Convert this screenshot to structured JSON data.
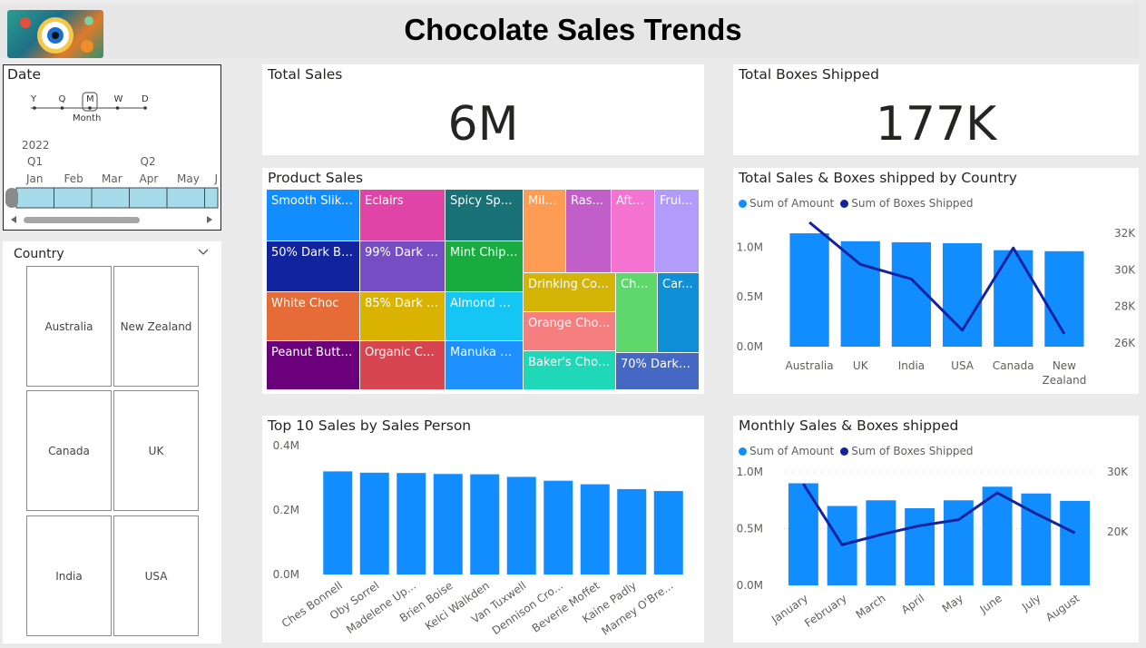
{
  "header": {
    "title": "Chocolate Sales Trends"
  },
  "date_slicer": {
    "title": "Date",
    "levels": [
      "Y",
      "Q",
      "M",
      "W",
      "D"
    ],
    "selected_level": "M",
    "selected_level_label": "Month",
    "year": "2022",
    "quarters": [
      {
        "label": "Q1",
        "month_index": 0
      },
      {
        "label": "Q2",
        "month_index": 3
      }
    ],
    "months": [
      "Jan",
      "Feb",
      "Mar",
      "Apr",
      "May",
      "J"
    ]
  },
  "country_slicer": {
    "title": "Country",
    "countries": [
      "Australia",
      "New Zealand",
      "Canada",
      "UK",
      "India",
      "USA"
    ]
  },
  "kpis": {
    "total_sales": {
      "title": "Total Sales",
      "value": "6M"
    },
    "total_boxes": {
      "title": "Total Boxes Shipped",
      "value": "177K"
    }
  },
  "legend": {
    "amount": {
      "label": "Sum of Amount",
      "color": "#118dff"
    },
    "boxes": {
      "label": "Sum of Boxes Shipped",
      "color": "#12239e"
    }
  },
  "chart_data": [
    {
      "id": "product_sales",
      "type": "treemap",
      "title": "Product Sales",
      "items": [
        {
          "label": "Smooth Sliky ...",
          "color": "#118dff"
        },
        {
          "label": "Eclairs",
          "color": "#e044a7"
        },
        {
          "label": "Spicy Spec...",
          "color": "#197278"
        },
        {
          "label": "Milk...",
          "color": "#fe9c54"
        },
        {
          "label": "Ras...",
          "color": "#c15ec9"
        },
        {
          "label": "Afte...",
          "color": "#f472d0"
        },
        {
          "label": "Frui...",
          "color": "#b19cfb"
        },
        {
          "label": "50% Dark Bites",
          "color": "#12239e"
        },
        {
          "label": "99% Dark &...",
          "color": "#744ec2"
        },
        {
          "label": "Mint Chip ...",
          "color": "#1aab40"
        },
        {
          "label": "Drinking Coco",
          "color": "#d4b406"
        },
        {
          "label": "Cho...",
          "color": "#5fd86b"
        },
        {
          "label": "Car...",
          "color": "#0f90d6"
        },
        {
          "label": "White Choc",
          "color": "#e66c37"
        },
        {
          "label": "85% Dark B...",
          "color": "#d9b300"
        },
        {
          "label": "Almond C...",
          "color": "#15c6f4"
        },
        {
          "label": "Orange Choco",
          "color": "#f57e7e"
        },
        {
          "label": "Peanut Butter...",
          "color": "#6b007b"
        },
        {
          "label": "Organic Ch...",
          "color": "#d64550"
        },
        {
          "label": "Manuka H...",
          "color": "#1e90ff"
        },
        {
          "label": "Baker's Choc...",
          "color": "#1ed8b8"
        },
        {
          "label": "70% Dark B...",
          "color": "#4668c5"
        }
      ]
    },
    {
      "id": "country_combo",
      "type": "bar+line",
      "title": "Total Sales & Boxes shipped by Country",
      "categories": [
        "Australia",
        "UK",
        "India",
        "USA",
        "Canada",
        "New Zealand"
      ],
      "series": [
        {
          "name": "Sum of Amount",
          "axis": "left",
          "values": [
            1140000,
            1060000,
            1050000,
            1040000,
            970000,
            960000
          ]
        },
        {
          "name": "Sum of Boxes Shipped",
          "axis": "right",
          "values": [
            32600,
            30300,
            29500,
            26700,
            31200,
            26500
          ]
        }
      ],
      "ylim_left": [
        0,
        1250000
      ],
      "yticks_left": [
        {
          "v": 0,
          "label": "0.0M"
        },
        {
          "v": 500000,
          "label": "0.5M"
        },
        {
          "v": 1000000,
          "label": "1.0M"
        }
      ],
      "ylim_right": [
        25800,
        32600
      ],
      "yticks_right": [
        {
          "v": 26000,
          "label": "26K"
        },
        {
          "v": 28000,
          "label": "28K"
        },
        {
          "v": 30000,
          "label": "30K"
        },
        {
          "v": 32000,
          "label": "32K"
        }
      ]
    },
    {
      "id": "sales_person",
      "type": "bar",
      "title": "Top 10 Sales by Sales Person",
      "categories": [
        "Ches Bonnell",
        "Oby Sorrel",
        "Madelene Up...",
        "Brien Boise",
        "Kelci Walkden",
        "Van Tuxwell",
        "Dennison Cro...",
        "Beverie Moffet",
        "Kaine Padly",
        "Marney O'Bre..."
      ],
      "values": [
        320000,
        316000,
        315000,
        312000,
        311000,
        303000,
        291000,
        280000,
        265000,
        259000
      ],
      "ylim": [
        0,
        400000
      ],
      "yticks": [
        {
          "v": 0,
          "label": "0.0M"
        },
        {
          "v": 200000,
          "label": "0.2M"
        },
        {
          "v": 400000,
          "label": "0.4M"
        }
      ]
    },
    {
      "id": "monthly_combo",
      "type": "bar+line",
      "title": "Monthly Sales & Boxes shipped",
      "categories": [
        "January",
        "February",
        "March",
        "April",
        "May",
        "June",
        "July",
        "August"
      ],
      "series": [
        {
          "name": "Sum of Amount",
          "axis": "left",
          "values": [
            900000,
            700000,
            750000,
            680000,
            750000,
            870000,
            810000,
            745000
          ]
        },
        {
          "name": "Sum of Boxes Shipped",
          "axis": "right",
          "values": [
            28000,
            17800,
            19500,
            21000,
            22000,
            26500,
            23000,
            19800
          ]
        }
      ],
      "ylim_left": [
        0,
        1000000
      ],
      "yticks_left": [
        {
          "v": 0,
          "label": "0.0M"
        },
        {
          "v": 500000,
          "label": "0.5M"
        },
        {
          "v": 1000000,
          "label": "1.0M"
        }
      ],
      "ylim_right": [
        11000,
        30000
      ],
      "yticks_right": [
        {
          "v": 20000,
          "label": "20K"
        },
        {
          "v": 30000,
          "label": "30K"
        }
      ]
    }
  ]
}
